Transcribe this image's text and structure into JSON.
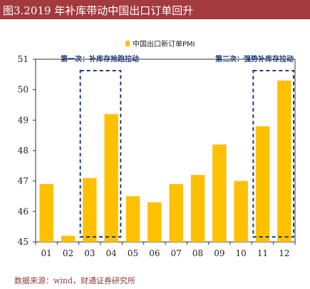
{
  "title": "图3.2019 年补库带动中国出口订单回升",
  "source": "数据来源：wind，财通证券研究所",
  "colors": {
    "bar": "#ffc000",
    "title_bg": "#a23a3e",
    "highlight_border": "#1f3a7a",
    "annotation": "#1f3a7a"
  },
  "chart_data": {
    "type": "bar",
    "categories": [
      "01",
      "02",
      "03",
      "04",
      "05",
      "06",
      "07",
      "08",
      "09",
      "10",
      "11",
      "12"
    ],
    "series": [
      {
        "name": "中国出口新订单PMI",
        "values": [
          46.9,
          45.2,
          47.1,
          49.2,
          46.5,
          46.3,
          46.9,
          47.2,
          48.2,
          47.0,
          48.8,
          50.3
        ]
      }
    ],
    "ylim": [
      45,
      51
    ],
    "yticks": [
      45,
      46,
      47,
      48,
      49,
      50,
      51
    ],
    "legend_position": "top-center",
    "grid": false,
    "annotations": [
      {
        "text": "第一次：补库存抢跑拉动",
        "categories": [
          "03",
          "04"
        ]
      },
      {
        "text": "第二次：强势补库存拉动",
        "categories": [
          "11",
          "12"
        ]
      }
    ]
  }
}
